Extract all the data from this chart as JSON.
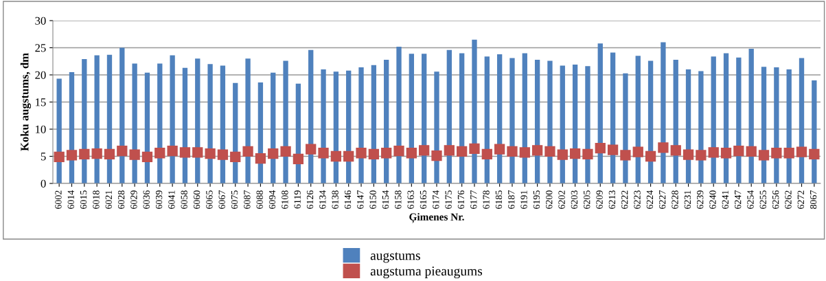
{
  "chart_data": {
    "type": "bar",
    "xlabel": "Ģimenes Nr.",
    "ylabel": "Koku augstums, dm",
    "categories": [
      "6002",
      "6014",
      "6015",
      "6018",
      "6021",
      "6028",
      "6029",
      "6036",
      "6039",
      "6041",
      "6058",
      "6060",
      "6065",
      "6067",
      "6075",
      "6087",
      "6088",
      "6094",
      "6108",
      "6119",
      "6126",
      "6134",
      "6138",
      "6146",
      "6147",
      "6150",
      "6154",
      "6158",
      "6163",
      "6165",
      "6174",
      "6175",
      "6176",
      "6177",
      "6178",
      "6185",
      "6187",
      "6191",
      "6195",
      "6200",
      "6202",
      "6203",
      "6205",
      "6209",
      "6213",
      "6222",
      "6223",
      "6224",
      "6227",
      "6228",
      "6231",
      "6239",
      "6240",
      "6241",
      "6247",
      "6254",
      "6255",
      "6256",
      "6262",
      "6272",
      "8067"
    ],
    "series": [
      {
        "name": "augstums",
        "color": "#4f81bd",
        "values": [
          19.3,
          20.5,
          22.9,
          23.6,
          23.7,
          25.0,
          22.1,
          20.4,
          22.1,
          23.6,
          21.3,
          23.0,
          22.0,
          21.7,
          18.5,
          23.0,
          18.6,
          20.4,
          22.6,
          18.4,
          24.6,
          21.0,
          20.6,
          20.8,
          21.4,
          21.8,
          22.8,
          25.2,
          23.9,
          23.9,
          20.6,
          24.6,
          24.0,
          26.5,
          23.4,
          23.8,
          23.1,
          24.0,
          22.8,
          22.6,
          21.7,
          21.9,
          21.6,
          25.8,
          24.1,
          20.3,
          23.5,
          22.6,
          26.0,
          22.8,
          21.0,
          20.7,
          23.4,
          24.0,
          23.2,
          24.8,
          21.5,
          21.4,
          21.0,
          23.1,
          19.0
        ]
      },
      {
        "name": "augstuma pieaugums",
        "color": "#c0504d",
        "type": "scatter",
        "marker": "square",
        "values": [
          4.9,
          5.2,
          5.4,
          5.5,
          5.4,
          6.0,
          5.3,
          4.9,
          5.6,
          6.0,
          5.7,
          5.7,
          5.5,
          5.3,
          4.9,
          5.9,
          4.6,
          5.5,
          5.9,
          4.5,
          6.3,
          5.6,
          5.0,
          5.0,
          5.6,
          5.4,
          5.6,
          6.0,
          5.6,
          6.1,
          5.1,
          6.1,
          5.9,
          6.4,
          5.4,
          6.3,
          5.9,
          5.7,
          6.1,
          5.9,
          5.3,
          5.5,
          5.4,
          6.5,
          6.2,
          5.2,
          5.8,
          5.0,
          6.6,
          6.1,
          5.3,
          5.2,
          5.7,
          5.6,
          6.0,
          5.9,
          5.2,
          5.6,
          5.6,
          5.8,
          5.4
        ]
      }
    ],
    "ylim": [
      0,
      30
    ],
    "yticks": [
      0,
      5,
      10,
      15,
      20,
      25,
      30
    ],
    "grid": "y",
    "legend": "bottom"
  }
}
